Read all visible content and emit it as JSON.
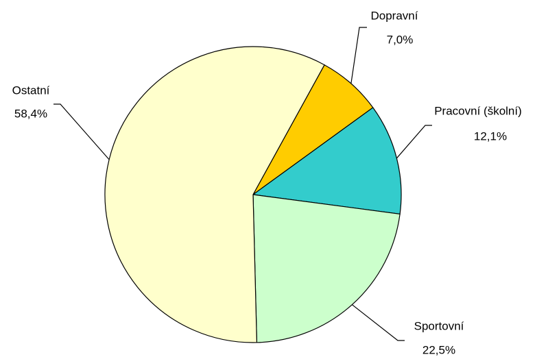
{
  "chart_data": {
    "type": "pie",
    "categories": [
      "Dopravní",
      "Pracovní (školní)",
      "Sportovní",
      "Ostatní"
    ],
    "values": [
      7.0,
      12.1,
      22.5,
      58.4
    ],
    "value_labels": [
      "7,0%",
      "12,1%",
      "22,5%",
      "58,4%"
    ],
    "colors": [
      "#ffcc00",
      "#33cccc",
      "#ccffcc",
      "#ffffcc"
    ]
  }
}
